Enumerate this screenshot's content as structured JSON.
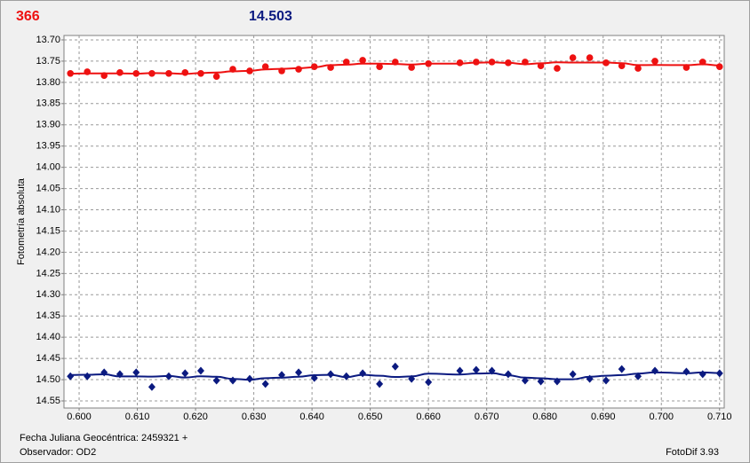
{
  "header": {
    "count": "366",
    "magnitude": "14.503"
  },
  "chart_data": {
    "type": "scatter",
    "ylabel": "Fotometría absoluta",
    "xlabel": "Fecha Juliana Geocéntrica: 2459321 +",
    "observer": "Observador: OD2",
    "software": "FotoDif 3.93",
    "xlim": [
      0.5974,
      0.7108
    ],
    "ylim": [
      13.6896,
      14.5667
    ],
    "y_inverted": true,
    "grid": true,
    "smooth": true,
    "xticks": [
      {
        "value": 0.6,
        "label": "0.600"
      },
      {
        "value": 0.61,
        "label": "0.610"
      },
      {
        "value": 0.62,
        "label": "0.620"
      },
      {
        "value": 0.63,
        "label": "0.630"
      },
      {
        "value": 0.64,
        "label": "0.640"
      },
      {
        "value": 0.65,
        "label": "0.650"
      },
      {
        "value": 0.66,
        "label": "0.660"
      },
      {
        "value": 0.67,
        "label": "0.670"
      },
      {
        "value": 0.68,
        "label": "0.680"
      },
      {
        "value": 0.69,
        "label": "0.690"
      },
      {
        "value": 0.7,
        "label": "0.700"
      },
      {
        "value": 0.71,
        "label": "0.710"
      }
    ],
    "yticks": [
      {
        "value": 13.7,
        "label": "13.70"
      },
      {
        "value": 13.75,
        "label": "13.75"
      },
      {
        "value": 13.8,
        "label": "13.80"
      },
      {
        "value": 13.85,
        "label": "13.85"
      },
      {
        "value": 13.9,
        "label": "13.90"
      },
      {
        "value": 13.95,
        "label": "13.95"
      },
      {
        "value": 14.0,
        "label": "14.00"
      },
      {
        "value": 14.05,
        "label": "14.05"
      },
      {
        "value": 14.1,
        "label": "14.10"
      },
      {
        "value": 14.15,
        "label": "14.15"
      },
      {
        "value": 14.2,
        "label": "14.20"
      },
      {
        "value": 14.25,
        "label": "14.25"
      },
      {
        "value": 14.3,
        "label": "14.30"
      },
      {
        "value": 14.35,
        "label": "14.35"
      },
      {
        "value": 14.4,
        "label": "14.40"
      },
      {
        "value": 14.45,
        "label": "14.45"
      },
      {
        "value": 14.5,
        "label": "14.50"
      },
      {
        "value": 14.55,
        "label": "14.55"
      }
    ],
    "x": [
      0.5985,
      0.6014,
      0.6043,
      0.607,
      0.6098,
      0.6125,
      0.6154,
      0.6182,
      0.6209,
      0.6236,
      0.6264,
      0.6293,
      0.632,
      0.6348,
      0.6377,
      0.6404,
      0.6432,
      0.6459,
      0.6487,
      0.6516,
      0.6543,
      0.6571,
      0.66,
      0.6654,
      0.6682,
      0.6709,
      0.6737,
      0.6766,
      0.6793,
      0.6821,
      0.6848,
      0.6877,
      0.6905,
      0.6932,
      0.696,
      0.6989,
      0.7043,
      0.7071,
      0.71
    ],
    "series": [
      {
        "color": "#ee1111",
        "marker": "circle",
        "values": [
          13.779,
          13.775,
          13.784,
          13.777,
          13.779,
          13.779,
          13.779,
          13.777,
          13.779,
          13.786,
          13.769,
          13.773,
          13.763,
          13.773,
          13.769,
          13.763,
          13.765,
          13.752,
          13.748,
          13.763,
          13.752,
          13.765,
          13.756,
          13.754,
          13.752,
          13.752,
          13.754,
          13.752,
          13.761,
          13.767,
          13.742,
          13.742,
          13.754,
          13.761,
          13.767,
          13.75,
          13.765,
          13.752,
          13.763
        ]
      },
      {
        "color": "#0b1a80",
        "marker": "diamond",
        "values": [
          14.492,
          14.492,
          14.483,
          14.487,
          14.483,
          14.517,
          14.492,
          14.485,
          14.479,
          14.502,
          14.502,
          14.498,
          14.51,
          14.489,
          14.483,
          14.496,
          14.487,
          14.492,
          14.485,
          14.51,
          14.469,
          14.498,
          14.506,
          14.479,
          14.477,
          14.479,
          14.487,
          14.502,
          14.504,
          14.504,
          14.487,
          14.498,
          14.502,
          14.475,
          14.492,
          14.479,
          14.481,
          14.487,
          14.485
        ]
      }
    ]
  }
}
